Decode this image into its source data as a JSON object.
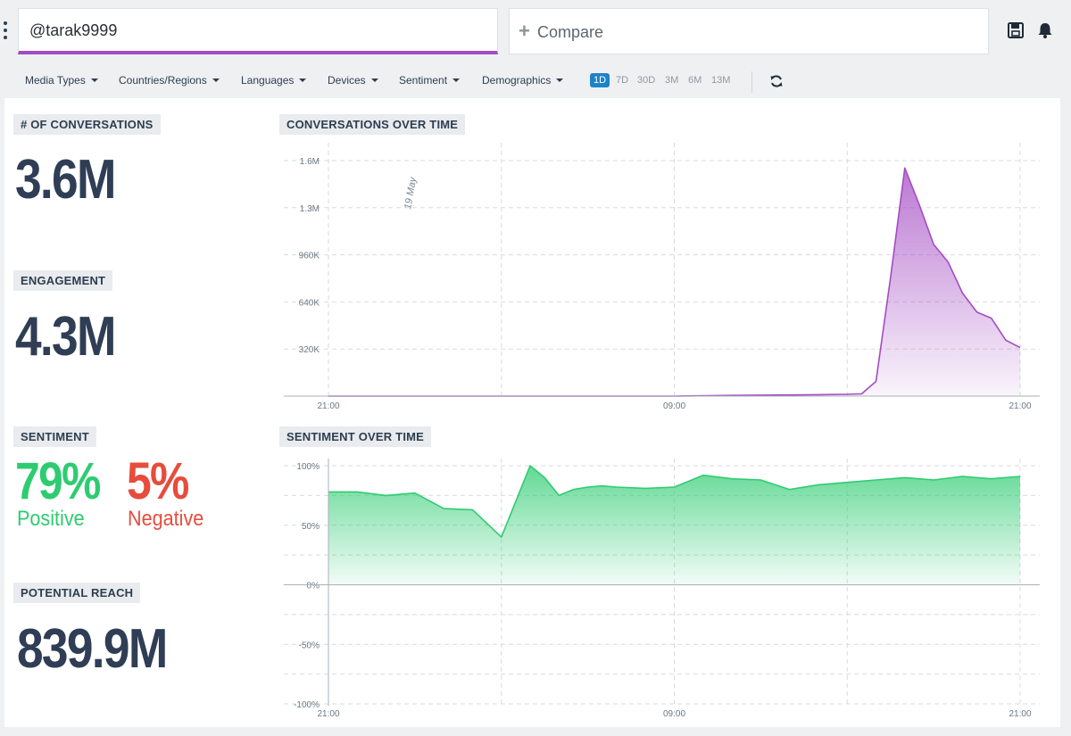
{
  "search": {
    "value": "@tarak9999"
  },
  "compare": {
    "label": "Compare"
  },
  "filters": [
    "Media Types",
    "Countries/Regions",
    "Languages",
    "Devices",
    "Sentiment",
    "Demographics"
  ],
  "ranges": [
    {
      "label": "1D",
      "active": true
    },
    {
      "label": "7D",
      "active": false
    },
    {
      "label": "30D",
      "active": false
    },
    {
      "label": "3M",
      "active": false
    },
    {
      "label": "6M",
      "active": false
    },
    {
      "label": "13M",
      "active": false
    }
  ],
  "colors": {
    "accent": "#a44bc3",
    "positive": "#2ecc71",
    "negative": "#e74c3c",
    "active_range": "#1d82c8",
    "metric": "#2f3e55"
  },
  "metrics": {
    "conversations": {
      "label": "# OF CONVERSATIONS",
      "value": "3.6M"
    },
    "engagement": {
      "label": "ENGAGEMENT",
      "value": "4.3M"
    },
    "sentiment": {
      "label": "SENTIMENT",
      "positive_value": "79%",
      "positive_label": "Positive",
      "negative_value": "5%",
      "negative_label": "Negative"
    },
    "reach": {
      "label": "POTENTIAL REACH",
      "value": "839.9M"
    }
  },
  "chart_data": [
    {
      "type": "area",
      "title": "CONVERSATIONS OVER TIME",
      "annotation": "19 May",
      "x_ticks": [
        "21:00",
        "09:00",
        "21:00"
      ],
      "x": [
        0,
        2,
        4,
        6,
        8,
        10,
        12,
        14,
        16,
        17,
        18,
        18.5,
        19,
        19.5,
        20,
        20.5,
        21,
        21.5,
        22,
        22.5,
        23,
        23.5,
        24
      ],
      "y_ticks": [
        "320K",
        "640K",
        "960K",
        "1.3M",
        "1.6M"
      ],
      "ylim": [
        0,
        1600000
      ],
      "grid": true,
      "color": "#a44bc3",
      "series": [
        {
          "values": [
            0,
            0,
            0,
            0,
            0,
            0,
            0,
            5000,
            8000,
            10000,
            12000,
            15000,
            100000,
            800000,
            1550000,
            1300000,
            1030000,
            910000,
            700000,
            570000,
            530000,
            380000,
            330000
          ]
        }
      ]
    },
    {
      "type": "area",
      "title": "SENTIMENT OVER TIME",
      "x_ticks": [
        "21:00",
        "09:00",
        "21:00"
      ],
      "x": [
        0,
        1,
        2,
        3,
        4,
        5,
        6,
        6.5,
        7,
        7.5,
        8,
        8.5,
        9,
        9.5,
        10,
        11,
        12,
        13,
        14,
        15,
        16,
        17,
        18,
        19,
        20,
        21,
        22,
        23,
        24
      ],
      "y_ticks": [
        "100%",
        "50%",
        "0%",
        "-50%",
        "-100%"
      ],
      "ylim": [
        -100,
        100
      ],
      "grid": true,
      "color": "#2ecc71",
      "series": [
        {
          "values": [
            78,
            78,
            75,
            77,
            64,
            63,
            40,
            70,
            100,
            90,
            75,
            80,
            82,
            83,
            82,
            81,
            82,
            92,
            89,
            88,
            80,
            84,
            86,
            88,
            90,
            88,
            91,
            89,
            91
          ]
        }
      ]
    }
  ]
}
